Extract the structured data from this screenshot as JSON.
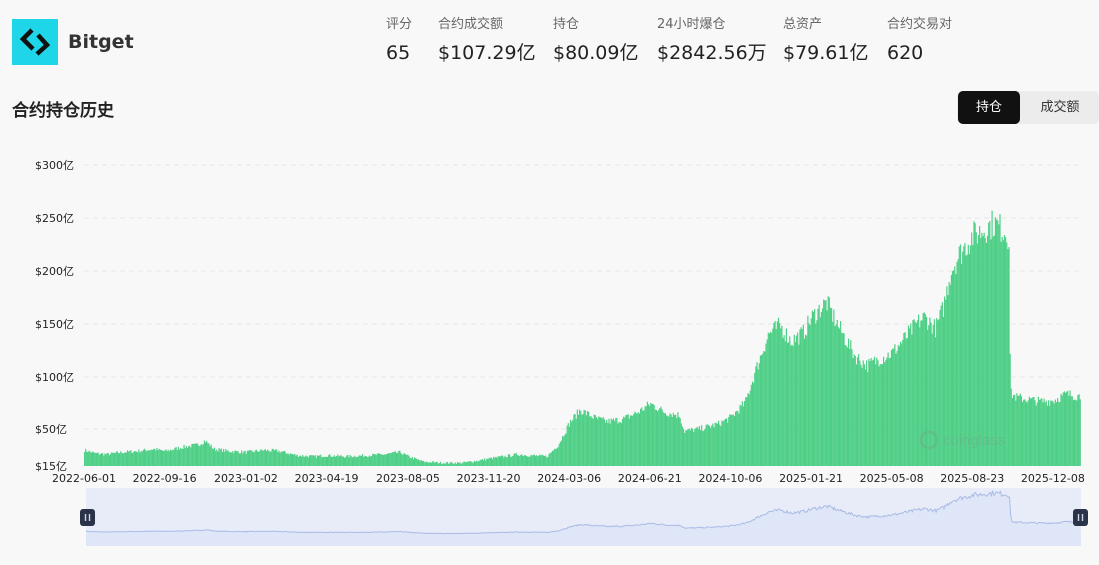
{
  "header": {
    "exchange_name": "Bitget",
    "logo_icon": "bitget-logo-icon",
    "logo_color": "#1ed6e8",
    "stats": [
      {
        "label": "评分",
        "value": "65"
      },
      {
        "label": "合约成交额",
        "value": "$107.29亿"
      },
      {
        "label": "持仓",
        "value": "$80.09亿"
      },
      {
        "label": "24小时爆仓",
        "value": "$2842.56万"
      },
      {
        "label": "总资产",
        "value": "$79.61亿"
      },
      {
        "label": "合约交易对",
        "value": "620"
      }
    ]
  },
  "section": {
    "title": "合约持仓历史",
    "toggle": [
      {
        "label": "持仓",
        "active": true
      },
      {
        "label": "成交额",
        "active": false
      }
    ]
  },
  "chart_data": {
    "type": "bar",
    "series": [
      {
        "color": "#4ecf86"
      }
    ],
    "y_ticks": [
      {
        "label": "$300亿",
        "value": 300
      },
      {
        "label": "$250亿",
        "value": 250
      },
      {
        "label": "$200亿",
        "value": 200
      },
      {
        "label": "$150亿",
        "value": 150
      },
      {
        "label": "$100亿",
        "value": 100
      },
      {
        "label": "$50亿",
        "value": 50
      },
      {
        "label": "$15亿",
        "value": 15
      }
    ],
    "ylim": [
      15,
      300
    ],
    "x_ticks": [
      "2022-06-01",
      "2022-09-16",
      "2023-01-02",
      "2023-04-19",
      "2023-08-05",
      "2023-11-20",
      "2024-03-06",
      "2024-06-21",
      "2024-10-06",
      "2025-01-21",
      "2025-05-08",
      "2025-08-23",
      "2025-12-08"
    ],
    "grid": true,
    "x_start": "2022-06-01",
    "x_end": "2026-01-13",
    "points": [
      [
        "2022-06-01",
        30
      ],
      [
        "2022-06-15",
        27
      ],
      [
        "2022-07-01",
        26
      ],
      [
        "2022-07-20",
        28
      ],
      [
        "2022-08-10",
        29
      ],
      [
        "2022-09-01",
        31
      ],
      [
        "2022-09-16",
        29
      ],
      [
        "2022-10-10",
        33
      ],
      [
        "2022-10-30",
        35
      ],
      [
        "2022-11-08",
        39
      ],
      [
        "2022-11-20",
        31
      ],
      [
        "2022-12-10",
        29
      ],
      [
        "2023-01-02",
        28
      ],
      [
        "2023-01-25",
        30
      ],
      [
        "2023-02-15",
        29
      ],
      [
        "2023-03-10",
        25
      ],
      [
        "2023-04-01",
        24
      ],
      [
        "2023-04-19",
        25
      ],
      [
        "2023-05-15",
        24
      ],
      [
        "2023-06-10",
        25
      ],
      [
        "2023-07-05",
        26
      ],
      [
        "2023-07-25",
        28
      ],
      [
        "2023-08-05",
        24
      ],
      [
        "2023-08-25",
        19
      ],
      [
        "2023-09-20",
        18
      ],
      [
        "2023-10-15",
        18
      ],
      [
        "2023-11-05",
        20
      ],
      [
        "2023-11-20",
        22
      ],
      [
        "2023-12-10",
        24
      ],
      [
        "2023-12-28",
        26
      ],
      [
        "2024-01-15",
        25
      ],
      [
        "2024-02-05",
        24
      ],
      [
        "2024-02-20",
        35
      ],
      [
        "2024-03-06",
        56
      ],
      [
        "2024-03-20",
        68
      ],
      [
        "2024-04-10",
        60
      ],
      [
        "2024-04-25",
        57
      ],
      [
        "2024-05-15",
        59
      ],
      [
        "2024-06-05",
        66
      ],
      [
        "2024-06-21",
        74
      ],
      [
        "2024-07-10",
        66
      ],
      [
        "2024-07-30",
        63
      ],
      [
        "2024-08-05",
        48
      ],
      [
        "2024-08-25",
        50
      ],
      [
        "2024-09-20",
        55
      ],
      [
        "2024-10-06",
        61
      ],
      [
        "2024-10-25",
        75
      ],
      [
        "2024-11-10",
        110
      ],
      [
        "2024-11-25",
        140
      ],
      [
        "2024-12-10",
        148
      ],
      [
        "2024-12-25",
        133
      ],
      [
        "2025-01-10",
        141
      ],
      [
        "2025-01-21",
        155
      ],
      [
        "2025-02-03",
        165
      ],
      [
        "2025-02-10",
        170
      ],
      [
        "2025-02-20",
        155
      ],
      [
        "2025-03-05",
        138
      ],
      [
        "2025-03-20",
        119
      ],
      [
        "2025-04-05",
        110
      ],
      [
        "2025-04-20",
        116
      ],
      [
        "2025-05-08",
        122
      ],
      [
        "2025-05-25",
        136
      ],
      [
        "2025-06-10",
        150
      ],
      [
        "2025-06-20",
        156
      ],
      [
        "2025-07-05",
        145
      ],
      [
        "2025-07-15",
        165
      ],
      [
        "2025-07-25",
        200
      ],
      [
        "2025-08-05",
        215
      ],
      [
        "2025-08-23",
        233
      ],
      [
        "2025-09-05",
        238
      ],
      [
        "2025-09-20",
        245
      ],
      [
        "2025-10-05",
        237
      ],
      [
        "2025-10-10",
        232
      ],
      [
        "2025-10-12",
        84
      ],
      [
        "2025-10-20",
        80
      ],
      [
        "2025-11-05",
        78
      ],
      [
        "2025-11-20",
        76
      ],
      [
        "2025-12-08",
        77
      ],
      [
        "2025-12-25",
        83
      ],
      [
        "2026-01-13",
        81
      ]
    ]
  },
  "watermark": "coinglass",
  "navigator": {
    "fill_color": "#dfe6f7",
    "line_color": "#a9bbe6",
    "handle_left_icon": "pause-handle-icon",
    "handle_right_icon": "pause-handle-icon"
  }
}
